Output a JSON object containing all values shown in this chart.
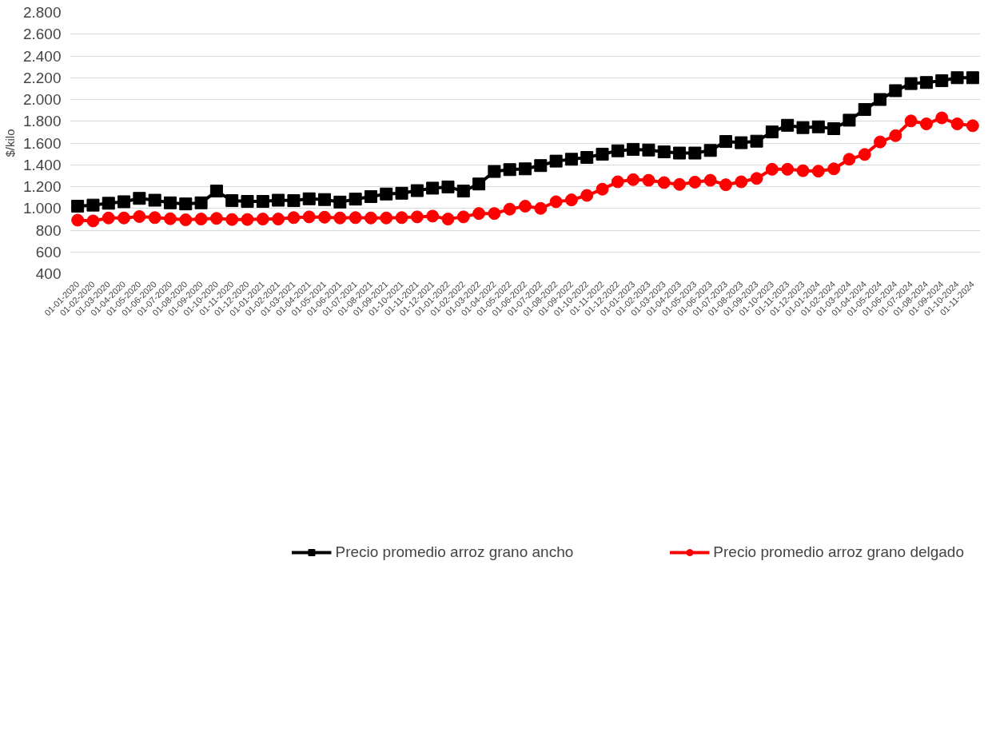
{
  "chart_data": {
    "type": "line",
    "ylabel": "$/kilo",
    "categories": [
      "01-01-2020",
      "01-02-2020",
      "01-03-2020",
      "01-04-2020",
      "01-05-2020",
      "01-06-2020",
      "01-07-2020",
      "01-08-2020",
      "01-09-2020",
      "01-10-2020",
      "01-11-2020",
      "01-12-2020",
      "01-01-2021",
      "01-02-2021",
      "01-03-2021",
      "01-04-2021",
      "01-05-2021",
      "01-06-2021",
      "01-07-2021",
      "01-08-2021",
      "01-09-2021",
      "01-10-2021",
      "01-11-2021",
      "01-12-2021",
      "01-01-2022",
      "01-02-2022",
      "01-03-2022",
      "01-04-2022",
      "01-05-2022",
      "01-06-2022",
      "01-07-2022",
      "01-08-2022",
      "01-09-2022",
      "01-10-2022",
      "01-11-2022",
      "01-12-2022",
      "01-01-2023",
      "01-02-2023",
      "01-03-2023",
      "01-04-2023",
      "01-05-2023",
      "01-06-2023",
      "01-07-2023",
      "01-08-2023",
      "01-09-2023",
      "01-10-2023",
      "01-11-2023",
      "01-12-2023",
      "01-01-2024",
      "01-02-2024",
      "01-03-2024",
      "01-04-2024",
      "01-05-2024",
      "01-06-2024",
      "01-07-2024",
      "01-08-2024",
      "01-09-2024",
      "01-10-2024",
      "01-11-2024"
    ],
    "series": [
      {
        "name": "Precio promedio arroz grano ancho",
        "color": "#000000",
        "marker": "square",
        "values": [
          1020,
          1030,
          1047,
          1061,
          1092,
          1075,
          1051,
          1041,
          1051,
          1159,
          1071,
          1064,
          1064,
          1075,
          1071,
          1088,
          1081,
          1058,
          1085,
          1108,
          1132,
          1139,
          1163,
          1186,
          1197,
          1159,
          1224,
          1339,
          1356,
          1363,
          1393,
          1434,
          1451,
          1468,
          1498,
          1529,
          1542,
          1536,
          1519,
          1508,
          1508,
          1532,
          1614,
          1603,
          1617,
          1702,
          1763,
          1742,
          1749,
          1732,
          1810,
          1908,
          2000,
          2081,
          2146,
          2156,
          2173,
          2200,
          2200
        ]
      },
      {
        "name": "Precio promedio arroz grano delgado",
        "color": "#ff0000",
        "marker": "circle",
        "values": [
          892,
          885,
          912,
          912,
          925,
          915,
          905,
          895,
          902,
          908,
          898,
          898,
          902,
          902,
          915,
          922,
          919,
          912,
          915,
          912,
          912,
          915,
          922,
          929,
          902,
          922,
          953,
          953,
          993,
          1020,
          1000,
          1061,
          1078,
          1119,
          1176,
          1244,
          1264,
          1258,
          1237,
          1220,
          1241,
          1258,
          1217,
          1244,
          1275,
          1359,
          1359,
          1346,
          1342,
          1363,
          1451,
          1495,
          1610,
          1668,
          1803,
          1776,
          1831,
          1776,
          1759
        ]
      }
    ],
    "ylim": [
      400,
      2800
    ],
    "yticks": [
      {
        "value": 400,
        "label": "400"
      },
      {
        "value": 600,
        "label": "600"
      },
      {
        "value": 800,
        "label": "800"
      },
      {
        "value": 1000,
        "label": "1.000"
      },
      {
        "value": 1200,
        "label": "1.200"
      },
      {
        "value": 1400,
        "label": "1.400"
      },
      {
        "value": 1600,
        "label": "1.600"
      },
      {
        "value": 1800,
        "label": "1.800"
      },
      {
        "value": 2000,
        "label": "2.000"
      },
      {
        "value": 2200,
        "label": "2.200"
      },
      {
        "value": 2400,
        "label": "2.400"
      },
      {
        "value": 2600,
        "label": "2.600"
      },
      {
        "value": 2800,
        "label": "2.800"
      }
    ],
    "grid": "y",
    "legend": "bottom",
    "line_style": "solid"
  }
}
